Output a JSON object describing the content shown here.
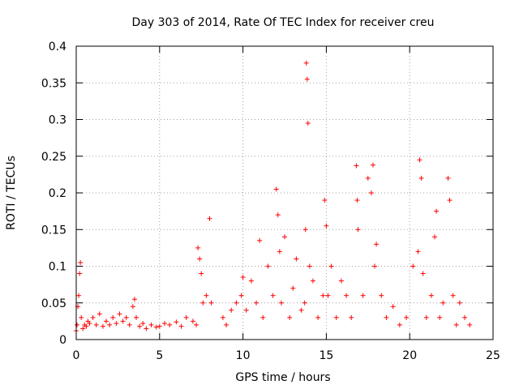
{
  "chart_data": {
    "type": "scatter",
    "title": "Day 303 of 2014, Rate Of TEC Index for receiver creu",
    "xlabel": "GPS time / hours",
    "ylabel": "ROTI / TECUs",
    "xlim": [
      0,
      25
    ],
    "ylim": [
      0,
      0.4
    ],
    "xticks": [
      0,
      5,
      10,
      15,
      20,
      25
    ],
    "xtick_labels": [
      "0",
      "5",
      "10",
      "15",
      "20",
      "25"
    ],
    "yticks": [
      0,
      0.05,
      0.1,
      0.15,
      0.2,
      0.25,
      0.3,
      0.35,
      0.4
    ],
    "ytick_labels": [
      "0",
      "0.05",
      "0.1",
      "0.15",
      "0.2",
      "0.25",
      "0.3",
      "0.35",
      "0.4"
    ],
    "grid": true,
    "marker": "+",
    "color": "#ff0000",
    "series": [
      {
        "name": "ROTI",
        "x": [
          0.0,
          0.05,
          0.1,
          0.15,
          0.2,
          0.25,
          0.3,
          0.4,
          0.5,
          0.6,
          0.7,
          0.8,
          1.0,
          1.2,
          1.4,
          1.6,
          1.8,
          2.0,
          2.2,
          2.4,
          2.6,
          2.8,
          3.0,
          3.2,
          3.4,
          3.5,
          3.6,
          3.8,
          4.0,
          4.2,
          4.5,
          4.8,
          5.0,
          5.3,
          5.6,
          6.0,
          6.3,
          6.6,
          7.0,
          7.2,
          7.3,
          7.4,
          7.5,
          7.6,
          7.8,
          8.0,
          8.1,
          8.8,
          9.0,
          9.3,
          9.6,
          9.9,
          10.0,
          10.2,
          10.5,
          10.8,
          11.0,
          11.2,
          11.5,
          11.8,
          12.0,
          12.1,
          12.2,
          12.3,
          12.5,
          12.8,
          13.0,
          13.2,
          13.5,
          13.7,
          13.75,
          13.8,
          13.85,
          13.9,
          14.0,
          14.2,
          14.5,
          14.8,
          14.9,
          15.0,
          15.1,
          15.3,
          15.6,
          15.9,
          16.2,
          16.5,
          16.8,
          16.85,
          16.9,
          17.2,
          17.5,
          17.7,
          17.8,
          17.9,
          18.0,
          18.3,
          18.6,
          19.0,
          19.4,
          19.8,
          20.2,
          20.5,
          20.6,
          20.7,
          20.8,
          21.0,
          21.3,
          21.5,
          21.6,
          21.8,
          22.0,
          22.3,
          22.4,
          22.6,
          22.8,
          23.0,
          23.3,
          23.6
        ],
        "y": [
          0.012,
          0.02,
          0.045,
          0.06,
          0.09,
          0.105,
          0.03,
          0.015,
          0.02,
          0.018,
          0.025,
          0.022,
          0.03,
          0.02,
          0.035,
          0.018,
          0.025,
          0.02,
          0.03,
          0.022,
          0.035,
          0.025,
          0.03,
          0.02,
          0.045,
          0.055,
          0.03,
          0.018,
          0.022,
          0.015,
          0.02,
          0.017,
          0.018,
          0.022,
          0.02,
          0.024,
          0.018,
          0.03,
          0.025,
          0.02,
          0.125,
          0.11,
          0.09,
          0.05,
          0.06,
          0.165,
          0.05,
          0.03,
          0.02,
          0.04,
          0.05,
          0.06,
          0.085,
          0.04,
          0.08,
          0.05,
          0.135,
          0.03,
          0.1,
          0.06,
          0.205,
          0.17,
          0.12,
          0.05,
          0.14,
          0.03,
          0.07,
          0.11,
          0.04,
          0.05,
          0.15,
          0.377,
          0.355,
          0.295,
          0.1,
          0.08,
          0.03,
          0.06,
          0.19,
          0.155,
          0.06,
          0.1,
          0.03,
          0.08,
          0.06,
          0.03,
          0.237,
          0.19,
          0.15,
          0.06,
          0.22,
          0.2,
          0.238,
          0.1,
          0.13,
          0.06,
          0.03,
          0.045,
          0.02,
          0.03,
          0.1,
          0.12,
          0.245,
          0.22,
          0.09,
          0.03,
          0.06,
          0.14,
          0.175,
          0.03,
          0.05,
          0.22,
          0.19,
          0.06,
          0.02,
          0.05,
          0.03,
          0.02
        ]
      }
    ]
  }
}
